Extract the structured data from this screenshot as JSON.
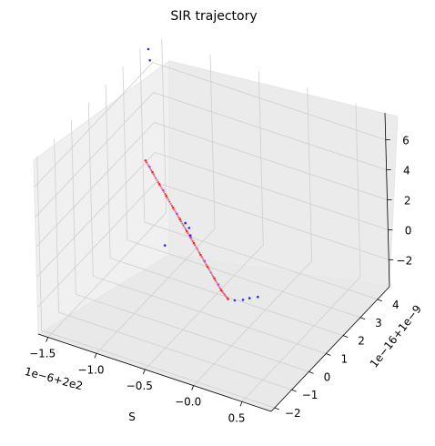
{
  "chart_data": {
    "type": "scatter",
    "projection": "3d",
    "title": "SIR trajectory",
    "xlabel": "S",
    "ylabel": "",
    "zlabel": "",
    "x_offset_text": "1e−6+2e2",
    "y_offset_text": "1e−16+1e−9",
    "x_ticks": [
      "−1.5",
      "−1.0",
      "−0.5",
      "−0.0",
      "0.5"
    ],
    "y_ticks": [
      "−2",
      "−1",
      "0",
      "1",
      "2",
      "3",
      "4"
    ],
    "z_ticks": [
      "−2",
      "0",
      "2",
      "4",
      "6"
    ],
    "xlim": [
      -1.6,
      0.8
    ],
    "ylim": [
      -2.2,
      4.7
    ],
    "zlim": [
      -3.8,
      7.8
    ],
    "grid": true,
    "colors": {
      "trajectory_red": "#ff0000",
      "trajectory_blue": "#0000ff",
      "trajectory_purple": "#c040c0"
    },
    "series": [
      {
        "color": "#ff0000",
        "points": [
          [
            -0.95,
            0.6,
            5.8
          ],
          [
            -0.9,
            0.7,
            5.0
          ],
          [
            -0.85,
            0.8,
            4.2
          ],
          [
            -0.8,
            0.9,
            3.4
          ],
          [
            -0.75,
            1.0,
            2.6
          ],
          [
            -0.7,
            1.1,
            1.8
          ],
          [
            -0.65,
            1.2,
            1.0
          ],
          [
            -0.6,
            1.3,
            0.2
          ],
          [
            -0.55,
            1.4,
            -0.6
          ],
          [
            -0.5,
            1.5,
            -1.4
          ],
          [
            -0.45,
            1.6,
            -2.2
          ],
          [
            -0.4,
            1.7,
            -3.0
          ],
          [
            -0.35,
            1.8,
            -3.6
          ]
        ]
      },
      {
        "color": "#0000ff",
        "points": [
          [
            -1.55,
            4.2,
            7.6
          ],
          [
            -1.5,
            4.0,
            7.2
          ],
          [
            -0.7,
            1.4,
            1.2
          ],
          [
            -0.68,
            1.5,
            0.8
          ],
          [
            -0.66,
            1.45,
            0.4
          ],
          [
            -0.9,
            1.3,
            -0.6
          ],
          [
            -0.3,
            1.9,
            -3.7
          ],
          [
            -0.25,
            2.1,
            -3.8
          ],
          [
            -0.2,
            2.2,
            -3.7
          ],
          [
            -0.15,
            2.4,
            -3.75
          ]
        ]
      },
      {
        "color": "#c040c0",
        "points": [
          [
            -0.92,
            0.65,
            5.4
          ],
          [
            -0.82,
            0.85,
            3.8
          ],
          [
            -0.72,
            1.05,
            2.2
          ],
          [
            -0.62,
            1.25,
            0.6
          ],
          [
            -0.52,
            1.45,
            -1.0
          ],
          [
            -0.42,
            1.65,
            -2.6
          ]
        ]
      }
    ]
  }
}
